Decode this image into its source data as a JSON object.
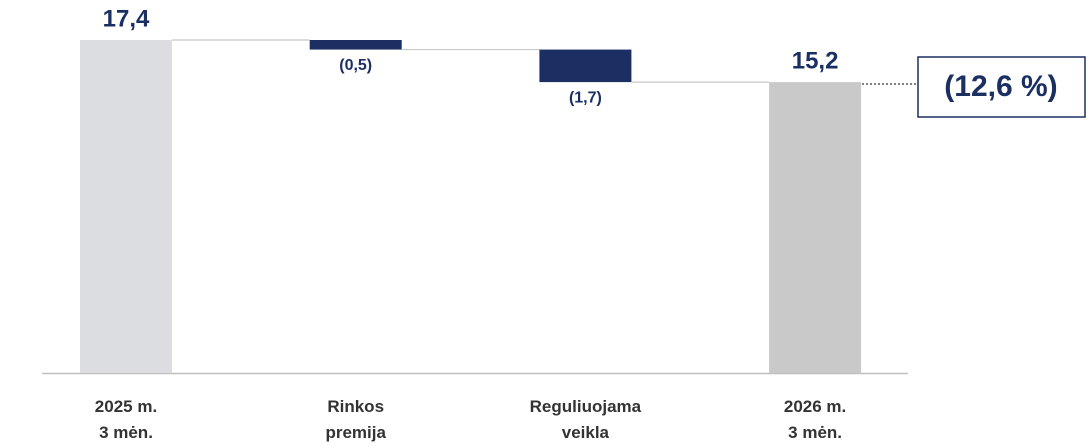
{
  "chart_data": {
    "type": "waterfall",
    "categories": [
      "2025 m.\n3 mėn.",
      "Rinkos\npremija",
      "Reguliuojama\nveikla",
      "2026 m.\n3 mėn."
    ],
    "measures": [
      "absolute",
      "relative",
      "relative",
      "total"
    ],
    "values": [
      17.4,
      -0.5,
      -1.7,
      15.2
    ],
    "value_labels": [
      "17,4",
      "(0,5)",
      "(1,7)",
      "15,2"
    ],
    "colors": [
      "#dcdde1",
      "#1b2f63",
      "#1b2f63",
      "#c9c9c9"
    ],
    "annotation": "(12,6 %)",
    "ylim": [
      0,
      17.4
    ]
  }
}
